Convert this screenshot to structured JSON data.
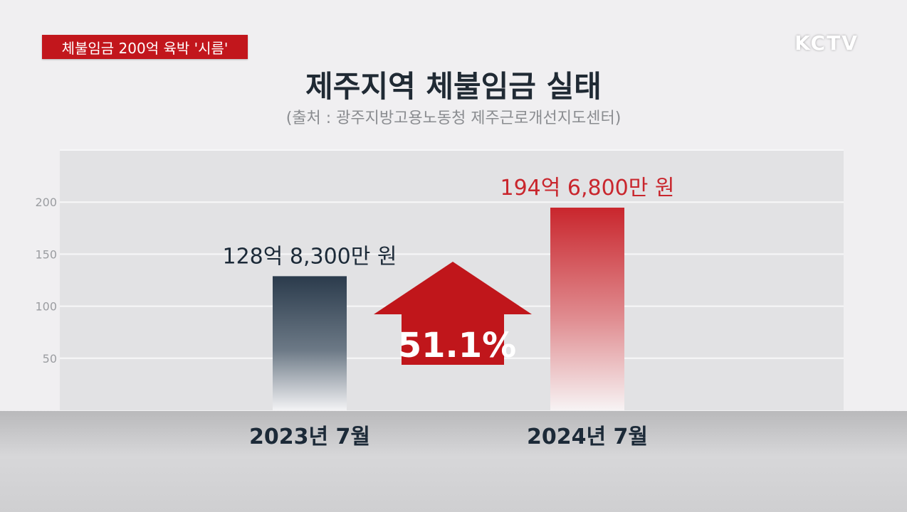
{
  "headline": "체불임금 200억 육박 '시름'",
  "logo": "KCTV",
  "chart_data": {
    "type": "bar",
    "title": "제주지역 체불임금 실태",
    "subtitle": "(출처 : 광주지방고용노동청 제주근로개선지도센터)",
    "categories": [
      "2023년 7월",
      "2024년 7월"
    ],
    "values": [
      128.83,
      194.68
    ],
    "data_labels": [
      "128억 8,300만 원",
      "194억 6,800만 원"
    ],
    "yticks": [
      50,
      100,
      150,
      200
    ],
    "ylim": [
      0,
      250
    ],
    "grid": true,
    "annotation": "51.1%",
    "bar_colors": [
      "#2b3b4c",
      "#c9262d"
    ],
    "annotation_color": "#c0161b"
  }
}
